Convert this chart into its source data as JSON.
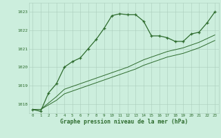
{
  "background_color": "#cceedd",
  "grid_color": "#aaccbb",
  "line_color": "#2d6b2d",
  "marker_color": "#2d6b2d",
  "title": "Graphe pression niveau de la mer (hPa)",
  "xlim": [
    -0.5,
    23.5
  ],
  "ylim": [
    1017.5,
    1023.5
  ],
  "xticks": [
    0,
    1,
    2,
    3,
    4,
    5,
    6,
    7,
    8,
    9,
    10,
    11,
    12,
    13,
    14,
    15,
    16,
    17,
    18,
    19,
    20,
    21,
    22,
    23
  ],
  "yticks": [
    1018,
    1019,
    1020,
    1021,
    1022,
    1023
  ],
  "series": [
    [
      1017.7,
      1017.6,
      1018.6,
      1019.1,
      1020.0,
      1020.3,
      1020.5,
      1021.0,
      1021.5,
      1022.1,
      1022.8,
      1022.9,
      1022.85,
      1022.85,
      1022.5,
      1021.7,
      1021.7,
      1021.6,
      1021.4,
      1021.4,
      1021.8,
      1021.9,
      1022.4,
      1023.0
    ],
    [
      1017.7,
      1017.7,
      1018.05,
      1018.4,
      1018.8,
      1018.95,
      1019.1,
      1019.25,
      1019.4,
      1019.55,
      1019.7,
      1019.85,
      1020.0,
      1020.2,
      1020.4,
      1020.55,
      1020.7,
      1020.85,
      1020.95,
      1021.05,
      1021.2,
      1021.35,
      1021.55,
      1021.75
    ],
    [
      1017.7,
      1017.7,
      1017.95,
      1018.2,
      1018.55,
      1018.7,
      1018.85,
      1019.0,
      1019.15,
      1019.3,
      1019.45,
      1019.6,
      1019.75,
      1019.9,
      1020.1,
      1020.25,
      1020.4,
      1020.55,
      1020.65,
      1020.75,
      1020.9,
      1021.05,
      1021.25,
      1021.45
    ]
  ]
}
